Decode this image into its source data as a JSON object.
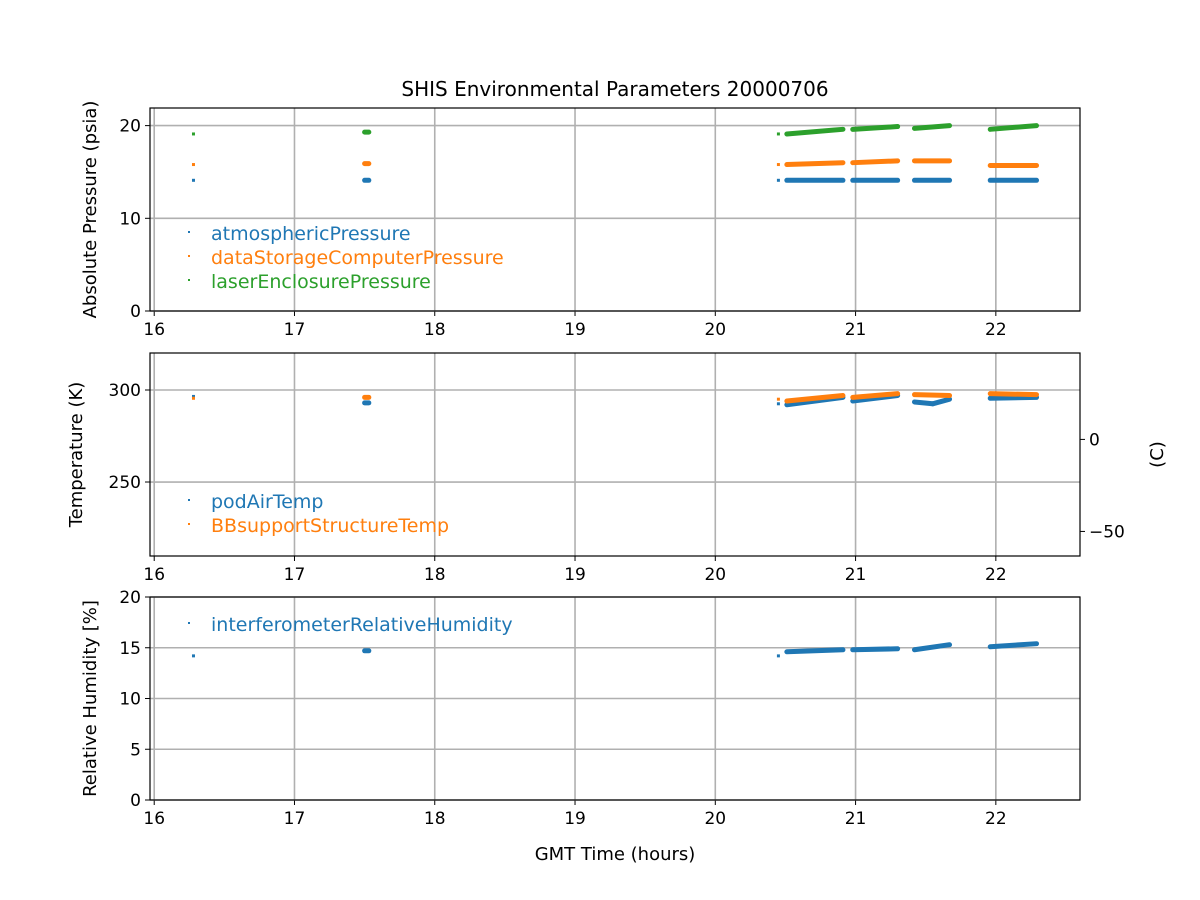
{
  "chart_data": [
    {
      "type": "scatter",
      "title": "SHIS Environmental Parameters 20000706",
      "xlabel": "",
      "ylabel": "Absolute Pressure (psia)",
      "xlim": [
        15.97,
        22.6
      ],
      "ylim": [
        0,
        21.9
      ],
      "xticks": [
        16,
        17,
        18,
        19,
        20,
        21,
        22
      ],
      "yticks": [
        0,
        10,
        20
      ],
      "grid": true,
      "legend_position": "left-middle",
      "segment_format": "[start_hour, end_hour, start_value, end_value]",
      "series": [
        {
          "name": "atmosphericPressure",
          "color": "#1f77b4",
          "segments": [
            [
              16.28,
              16.28,
              14.1,
              14.1
            ],
            [
              17.5,
              17.53,
              14.1,
              14.1
            ],
            [
              20.45,
              20.45,
              14.1,
              14.1
            ],
            [
              20.51,
              20.91,
              14.1,
              14.1
            ],
            [
              20.98,
              21.3,
              14.1,
              14.1
            ],
            [
              21.42,
              21.67,
              14.1,
              14.1
            ],
            [
              21.96,
              22.29,
              14.1,
              14.1
            ]
          ]
        },
        {
          "name": "dataStorageComputerPressure",
          "color": "#ff7f0e",
          "segments": [
            [
              16.28,
              16.28,
              15.8,
              15.8
            ],
            [
              17.5,
              17.53,
              15.9,
              15.9
            ],
            [
              20.45,
              20.45,
              15.8,
              15.8
            ],
            [
              20.51,
              20.91,
              15.8,
              16.0
            ],
            [
              20.98,
              21.3,
              16.0,
              16.2
            ],
            [
              21.42,
              21.67,
              16.2,
              16.2
            ],
            [
              21.96,
              22.29,
              15.7,
              15.7
            ]
          ]
        },
        {
          "name": "laserEnclosurePressure",
          "color": "#2ca02c",
          "segments": [
            [
              16.28,
              16.28,
              19.1,
              19.1
            ],
            [
              17.5,
              17.53,
              19.3,
              19.3
            ],
            [
              20.45,
              20.45,
              19.1,
              19.1
            ],
            [
              20.51,
              20.91,
              19.1,
              19.6
            ],
            [
              20.98,
              21.3,
              19.6,
              19.9
            ],
            [
              21.42,
              21.67,
              19.7,
              20.0
            ],
            [
              21.96,
              22.29,
              19.6,
              20.0
            ]
          ]
        }
      ]
    },
    {
      "type": "scatter",
      "ylabel": "Temperature (K)",
      "y2label": "(C)",
      "xlim": [
        15.97,
        22.6
      ],
      "ylim": [
        209.8,
        320.1
      ],
      "xticks": [
        16,
        17,
        18,
        19,
        20,
        21,
        22
      ],
      "yticks": [
        250,
        300
      ],
      "y2ticks": [
        {
          "label": "0",
          "value_c": 0
        },
        {
          "label": "−50",
          "value_c": -50
        }
      ],
      "grid": true,
      "legend_position": "lower-left",
      "segment_format": "[start_hour, end_hour, start_value, end_value]",
      "series": [
        {
          "name": "podAirTemp",
          "color": "#1f77b4",
          "segments": [
            [
              16.28,
              16.28,
              296.5,
              296.5
            ],
            [
              17.5,
              17.53,
              293,
              293
            ],
            [
              20.45,
              20.45,
              292.5,
              292.5
            ],
            [
              20.51,
              20.91,
              292,
              296
            ],
            [
              20.98,
              21.3,
              294,
              297
            ],
            [
              21.42,
              21.55,
              293.5,
              292.5
            ],
            [
              21.55,
              21.67,
              292.5,
              295
            ],
            [
              21.96,
              22.29,
              295.5,
              296
            ]
          ]
        },
        {
          "name": "BBsupportStructureTemp",
          "color": "#ff7f0e",
          "segments": [
            [
              16.28,
              16.28,
              295.5,
              295.5
            ],
            [
              17.5,
              17.53,
              296,
              296
            ],
            [
              20.45,
              20.45,
              295,
              295
            ],
            [
              20.51,
              20.91,
              294,
              297
            ],
            [
              20.98,
              21.3,
              296,
              298
            ],
            [
              21.42,
              21.67,
              297.5,
              297
            ],
            [
              21.96,
              22.29,
              298,
              297.5
            ]
          ]
        }
      ]
    },
    {
      "type": "scatter",
      "xlabel": "GMT Time (hours)",
      "ylabel": "Relative Humidity [%]",
      "xlim": [
        15.97,
        22.6
      ],
      "ylim": [
        0,
        20
      ],
      "xticks": [
        16,
        17,
        18,
        19,
        20,
        21,
        22
      ],
      "yticks": [
        0,
        5,
        10,
        15,
        20
      ],
      "grid": true,
      "legend_position": "upper-left",
      "segment_format": "[start_hour, end_hour, start_value, end_value]",
      "series": [
        {
          "name": "interferometerRelativeHumidity",
          "color": "#1f77b4",
          "segments": [
            [
              16.28,
              16.28,
              14.2,
              14.2
            ],
            [
              17.5,
              17.53,
              14.7,
              14.7
            ],
            [
              20.45,
              20.45,
              14.2,
              14.2
            ],
            [
              20.51,
              20.91,
              14.6,
              14.8
            ],
            [
              20.98,
              21.3,
              14.8,
              14.9
            ],
            [
              21.42,
              21.67,
              14.8,
              15.3
            ],
            [
              21.96,
              22.29,
              15.1,
              15.4
            ]
          ]
        }
      ]
    }
  ]
}
